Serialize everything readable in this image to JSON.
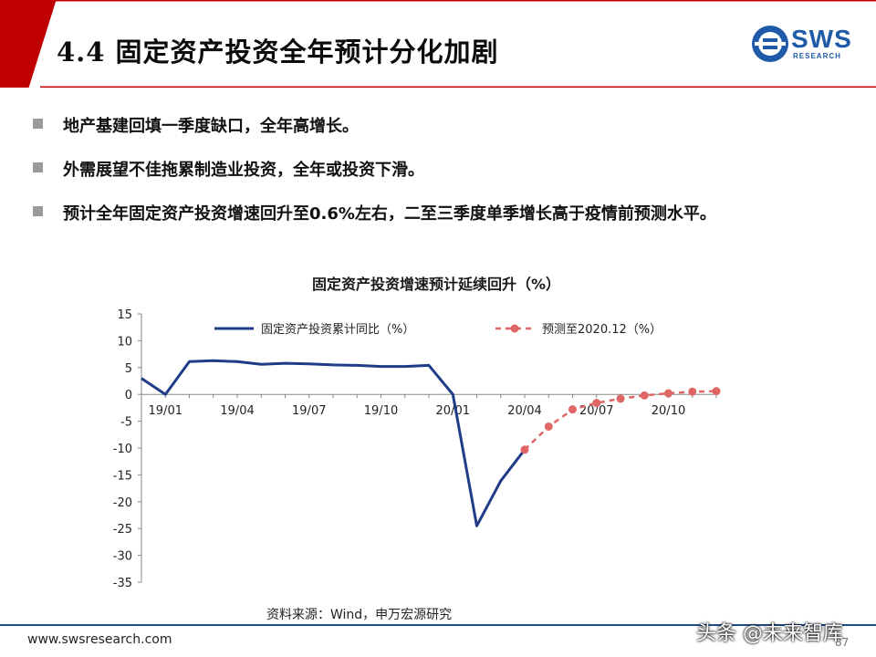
{
  "slide": {
    "title": "4.4 固定资产投资全年预计分化加剧",
    "logo_text": "SWS",
    "logo_sub": "RESEARCH",
    "bullets": [
      "地产基建回填一季度缺口，全年高增长。",
      "外需展望不佳拖累制造业投资，全年或投资下滑。",
      "预计全年固定资产投资增速回升至0.6%左右，二至三季度单季增长高于疫情前预测水平。"
    ],
    "source": "资料来源：Wind，申万宏源研究",
    "footer_url": "www.swsresearch.com",
    "page_number": "87",
    "watermark": "头条 @未来智库"
  },
  "colors": {
    "accent_red": "#c00000",
    "actual_series": "#1f3c88",
    "forecast_series": "#e06666",
    "footer_line": "#1e4c8a"
  },
  "chart_data": {
    "type": "line",
    "title": "固定资产投资增速预计延续回升（%）",
    "ylim": [
      -35,
      15
    ],
    "y_ticks": [
      15,
      10,
      5,
      0,
      -5,
      -10,
      -15,
      -20,
      -25,
      -30,
      -35
    ],
    "x_tick_labels": [
      "19/01",
      "19/04",
      "19/07",
      "19/10",
      "20/01",
      "20/04",
      "20/07",
      "20/10"
    ],
    "x_range": [
      "2018/12",
      "2020/12"
    ],
    "legend_position": "top",
    "series": [
      {
        "name": "固定资产投资累计同比（%）",
        "style": "solid",
        "points": [
          [
            "2018/12",
            3.0
          ],
          [
            "2019/01",
            0.0
          ],
          [
            "2019/02",
            6.1
          ],
          [
            "2019/03",
            6.3
          ],
          [
            "2019/04",
            6.1
          ],
          [
            "2019/05",
            5.6
          ],
          [
            "2019/06",
            5.8
          ],
          [
            "2019/07",
            5.7
          ],
          [
            "2019/08",
            5.5
          ],
          [
            "2019/09",
            5.4
          ],
          [
            "2019/10",
            5.2
          ],
          [
            "2019/11",
            5.2
          ],
          [
            "2019/12",
            5.4
          ],
          [
            "2020/01",
            0.0
          ],
          [
            "2020/02",
            -24.5
          ],
          [
            "2020/03",
            -16.1
          ],
          [
            "2020/04",
            -10.3
          ]
        ]
      },
      {
        "name": "预测至2020.12（%）",
        "style": "dashed",
        "points": [
          [
            "2020/04",
            -10.3
          ],
          [
            "2020/05",
            -6.0
          ],
          [
            "2020/06",
            -2.8
          ],
          [
            "2020/07",
            -1.6
          ],
          [
            "2020/08",
            -0.8
          ],
          [
            "2020/09",
            -0.2
          ],
          [
            "2020/10",
            0.2
          ],
          [
            "2020/11",
            0.5
          ],
          [
            "2020/12",
            0.6
          ]
        ]
      }
    ]
  }
}
